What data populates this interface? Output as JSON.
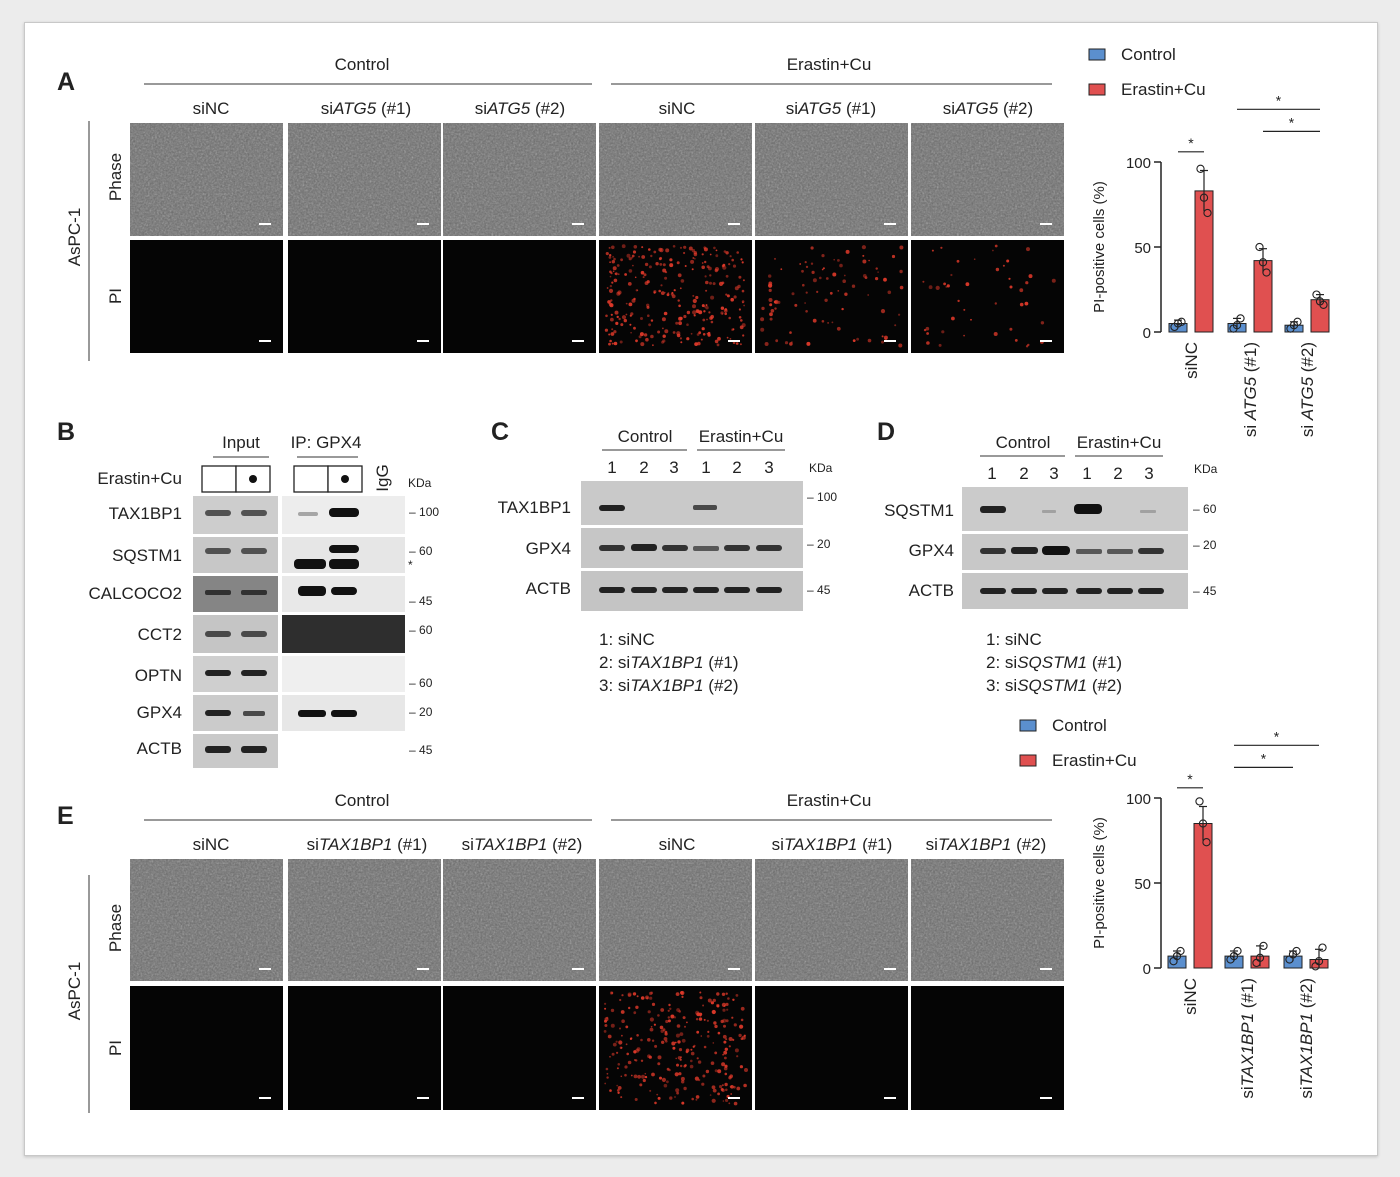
{
  "panels": {
    "A": "A",
    "B": "B",
    "C": "C",
    "D": "D",
    "E": "E"
  },
  "cell_line": "AsPC-1",
  "row_labels": {
    "phase": "Phase",
    "pi": "PI"
  },
  "colors": {
    "control": "#5b8fce",
    "erastin": "#e05050"
  },
  "panel_A": {
    "groups": [
      "Control",
      "Erastin+Cu"
    ],
    "columns": [
      {
        "pre": "siNC",
        "gene": "",
        "post": ""
      },
      {
        "pre": "si",
        "gene": "ATG5",
        "post": " (#1)"
      },
      {
        "pre": "si",
        "gene": "ATG5",
        "post": " (#2)"
      },
      {
        "pre": "siNC",
        "gene": "",
        "post": ""
      },
      {
        "pre": "si",
        "gene": "ATG5",
        "post": " (#1)"
      },
      {
        "pre": "si",
        "gene": "ATG5",
        "post": " (#2)"
      }
    ],
    "pi_signal": [
      0,
      0,
      0,
      3,
      1,
      0.5
    ]
  },
  "panel_E": {
    "groups": [
      "Control",
      "Erastin+Cu"
    ],
    "columns": [
      {
        "pre": "siNC",
        "gene": "",
        "post": ""
      },
      {
        "pre": "si",
        "gene": "TAX1BP1",
        "post": " (#1)"
      },
      {
        "pre": "si",
        "gene": "TAX1BP1",
        "post": " (#2)"
      },
      {
        "pre": "siNC",
        "gene": "",
        "post": ""
      },
      {
        "pre": "si",
        "gene": "TAX1BP1",
        "post": " (#1)"
      },
      {
        "pre": "si",
        "gene": "TAX1BP1",
        "post": " (#2)"
      }
    ],
    "pi_signal": [
      0,
      0,
      0,
      3,
      0,
      0
    ]
  },
  "panel_B": {
    "headers": {
      "input": "Input",
      "ip": "IP: GPX4",
      "igg": "IgG",
      "treatment": "Erastin+Cu",
      "kda": "KDa"
    },
    "rows": [
      {
        "label": "TAX1BP1",
        "markers": [
          "100"
        ]
      },
      {
        "label": "SQSTM1",
        "markers": [
          "60",
          "*"
        ]
      },
      {
        "label": "CALCOCO2",
        "markers": [
          "45"
        ]
      },
      {
        "label": "CCT2",
        "markers": [
          "60"
        ]
      },
      {
        "label": "OPTN",
        "markers": [
          "60"
        ]
      },
      {
        "label": "GPX4",
        "markers": [
          "20"
        ]
      },
      {
        "label": "ACTB",
        "markers": [
          "45"
        ]
      }
    ]
  },
  "panel_C": {
    "groups": [
      "Control",
      "Erastin+Cu"
    ],
    "lanes": [
      "1",
      "2",
      "3",
      "1",
      "2",
      "3"
    ],
    "kda": "KDa",
    "rows": [
      {
        "label": "TAX1BP1",
        "marker": "100"
      },
      {
        "label": "GPX4",
        "marker": "20"
      },
      {
        "label": "ACTB",
        "marker": "45"
      }
    ],
    "key": [
      {
        "pre": "1: siNC",
        "gene": "",
        "post": ""
      },
      {
        "pre": "2: si",
        "gene": "TAX1BP1",
        "post": " (#1)"
      },
      {
        "pre": "3: si",
        "gene": "TAX1BP1",
        "post": " (#2)"
      }
    ]
  },
  "panel_D": {
    "groups": [
      "Control",
      "Erastin+Cu"
    ],
    "lanes": [
      "1",
      "2",
      "3",
      "1",
      "2",
      "3"
    ],
    "kda": "KDa",
    "rows": [
      {
        "label": "SQSTM1",
        "marker": "60"
      },
      {
        "label": "GPX4",
        "marker": "20"
      },
      {
        "label": "ACTB",
        "marker": "45"
      }
    ],
    "key": [
      {
        "pre": "1: siNC",
        "gene": "",
        "post": ""
      },
      {
        "pre": "2: si",
        "gene": "SQSTM1",
        "post": " (#1)"
      },
      {
        "pre": "3: si",
        "gene": "SQSTM1",
        "post": " (#2)"
      }
    ]
  },
  "chart_data": [
    {
      "type": "bar",
      "panel": "A",
      "categories": [
        {
          "pre": "siNC",
          "gene": "",
          "post": ""
        },
        {
          "pre": "si ",
          "gene": "ATG5",
          "post": " (#1)"
        },
        {
          "pre": "si ",
          "gene": "ATG5",
          "post": " (#2)"
        }
      ],
      "ylabel": "PI-positive cells (%)",
      "ylim": [
        0,
        100
      ],
      "yticks": [
        0,
        50,
        100
      ],
      "legend": "top",
      "series": [
        {
          "name": "Control",
          "values": [
            5,
            5,
            4
          ],
          "error": [
            2,
            3,
            2
          ],
          "points": [
            [
              3,
              5,
              6
            ],
            [
              2,
              4,
              8
            ],
            [
              2,
              4,
              6
            ]
          ]
        },
        {
          "name": "Erastin+Cu",
          "values": [
            83,
            42,
            19
          ],
          "error": [
            12,
            7,
            3
          ],
          "points": [
            [
              96,
              79,
              70
            ],
            [
              50,
              41,
              35
            ],
            [
              22,
              18,
              16
            ]
          ]
        }
      ],
      "significance": [
        {
          "label": "*",
          "from": [
            0,
            0
          ],
          "to": [
            0,
            1
          ],
          "y": 106
        },
        {
          "label": "*",
          "from": [
            1,
            1
          ],
          "to": [
            2,
            1
          ],
          "y": 118
        },
        {
          "label": "*",
          "from": [
            1,
            0
          ],
          "to": [
            2,
            1
          ],
          "y": 131
        }
      ]
    },
    {
      "type": "bar",
      "panel": "E",
      "categories": [
        {
          "pre": "siNC",
          "gene": "",
          "post": ""
        },
        {
          "pre": "si",
          "gene": "TAX1BP1",
          "post": " (#1)"
        },
        {
          "pre": "si",
          "gene": "TAX1BP1",
          "post": " (#2)"
        }
      ],
      "ylabel": "PI-positive cells (%)",
      "ylim": [
        0,
        100
      ],
      "yticks": [
        0,
        50,
        100
      ],
      "legend": "top",
      "series": [
        {
          "name": "Control",
          "values": [
            7,
            7,
            7
          ],
          "error": [
            3,
            3,
            3
          ],
          "points": [
            [
              4,
              7,
              10
            ],
            [
              5,
              7,
              10
            ],
            [
              5,
              8,
              10
            ]
          ]
        },
        {
          "name": "Erastin+Cu",
          "values": [
            85,
            7,
            5
          ],
          "error": [
            10,
            6,
            6
          ],
          "points": [
            [
              98,
              85,
              74
            ],
            [
              3,
              6,
              13
            ],
            [
              1,
              4,
              12
            ]
          ]
        }
      ],
      "significance": [
        {
          "label": "*",
          "from": [
            0,
            0
          ],
          "to": [
            0,
            1
          ],
          "y": 106
        },
        {
          "label": "*",
          "from": [
            1,
            0
          ],
          "to": [
            2,
            0
          ],
          "y": 118
        },
        {
          "label": "*",
          "from": [
            1,
            0
          ],
          "to": [
            2,
            1
          ],
          "y": 131
        }
      ]
    }
  ]
}
